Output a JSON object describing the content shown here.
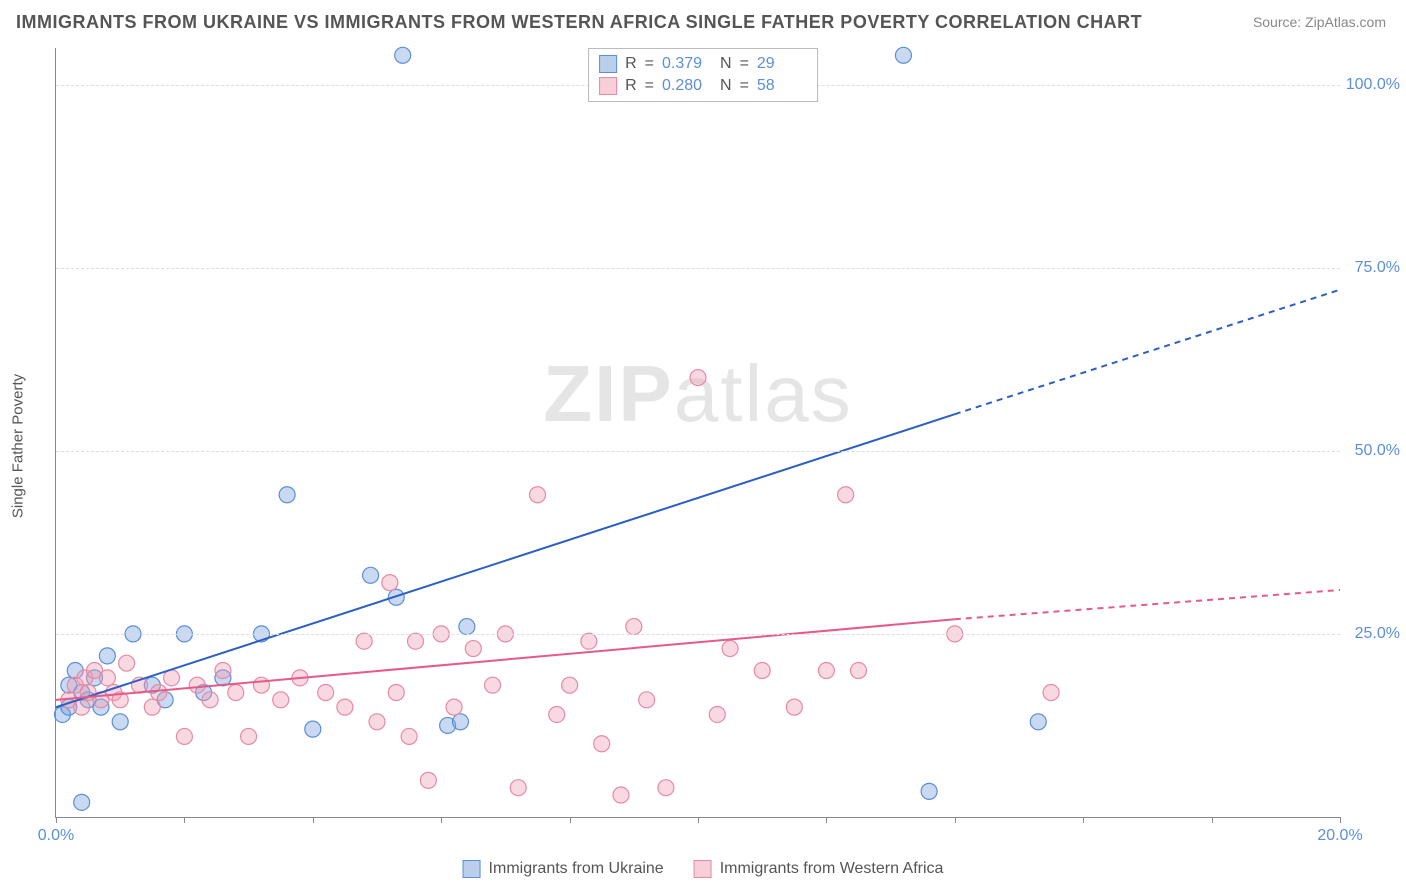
{
  "title": "IMMIGRANTS FROM UKRAINE VS IMMIGRANTS FROM WESTERN AFRICA SINGLE FATHER POVERTY CORRELATION CHART",
  "source_prefix": "Source: ",
  "source_name": "ZipAtlas.com",
  "y_axis_label": "Single Father Poverty",
  "watermark_zip": "ZIP",
  "watermark_atlas": "atlas",
  "chart": {
    "type": "scatter",
    "xlim": [
      0,
      20
    ],
    "ylim": [
      0,
      105
    ],
    "x_ticks": [
      0,
      2,
      4,
      6,
      8,
      10,
      12,
      14,
      16,
      18,
      20
    ],
    "x_tick_labels": {
      "0": "0.0%",
      "20": "20.0%"
    },
    "y_ticks": [
      25,
      50,
      75,
      100
    ],
    "y_tick_labels": [
      "25.0%",
      "50.0%",
      "75.0%",
      "100.0%"
    ],
    "grid_color": "#dddddd",
    "background_color": "#ffffff",
    "axis_color": "#888888",
    "tick_label_color": "#5b8fd6",
    "marker_radius": 8,
    "marker_opacity": 0.5,
    "line_width": 2
  },
  "series": [
    {
      "id": "ukraine",
      "label": "Immigrants from Ukraine",
      "color_fill": "rgba(120,160,220,0.4)",
      "color_stroke": "#5b8fd6",
      "trend_color": "#2c5fc4",
      "trend": {
        "x1": 0,
        "y1": 15,
        "x2_solid": 14,
        "y2_solid": 55,
        "x2": 20,
        "y2": 72
      },
      "R": "0.379",
      "N": "29",
      "points": [
        [
          0.1,
          14
        ],
        [
          0.2,
          18
        ],
        [
          0.2,
          15
        ],
        [
          0.3,
          20
        ],
        [
          0.4,
          2
        ],
        [
          0.4,
          17
        ],
        [
          0.5,
          16
        ],
        [
          0.6,
          19
        ],
        [
          0.7,
          15
        ],
        [
          0.8,
          22
        ],
        [
          1.0,
          13
        ],
        [
          1.2,
          25
        ],
        [
          1.5,
          18
        ],
        [
          1.7,
          16
        ],
        [
          2.0,
          25
        ],
        [
          2.3,
          17
        ],
        [
          2.6,
          19
        ],
        [
          3.2,
          25
        ],
        [
          3.6,
          44
        ],
        [
          4.0,
          12
        ],
        [
          4.9,
          33
        ],
        [
          5.3,
          30
        ],
        [
          5.4,
          104
        ],
        [
          6.1,
          12.5
        ],
        [
          6.3,
          13
        ],
        [
          6.4,
          26
        ],
        [
          13.2,
          104
        ],
        [
          13.6,
          3.5
        ],
        [
          15.3,
          13
        ]
      ]
    },
    {
      "id": "western_africa",
      "label": "Immigrants from Western Africa",
      "color_fill": "rgba(240,160,180,0.4)",
      "color_stroke": "#e68aa5",
      "trend_color": "#e55a87",
      "trend": {
        "x1": 0,
        "y1": 16,
        "x2_solid": 14,
        "y2_solid": 27,
        "x2": 20,
        "y2": 31
      },
      "R": "0.280",
      "N": "58",
      "points": [
        [
          0.2,
          16
        ],
        [
          0.3,
          18
        ],
        [
          0.4,
          15
        ],
        [
          0.45,
          19
        ],
        [
          0.5,
          17
        ],
        [
          0.6,
          20
        ],
        [
          0.7,
          16
        ],
        [
          0.8,
          19
        ],
        [
          0.9,
          17
        ],
        [
          1.0,
          16
        ],
        [
          1.1,
          21
        ],
        [
          1.3,
          18
        ],
        [
          1.5,
          15
        ],
        [
          1.6,
          17
        ],
        [
          1.8,
          19
        ],
        [
          2.0,
          11
        ],
        [
          2.2,
          18
        ],
        [
          2.4,
          16
        ],
        [
          2.6,
          20
        ],
        [
          2.8,
          17
        ],
        [
          3.0,
          11
        ],
        [
          3.2,
          18
        ],
        [
          3.5,
          16
        ],
        [
          3.8,
          19
        ],
        [
          4.2,
          17
        ],
        [
          4.5,
          15
        ],
        [
          4.8,
          24
        ],
        [
          5.0,
          13
        ],
        [
          5.2,
          32
        ],
        [
          5.3,
          17
        ],
        [
          5.5,
          11
        ],
        [
          5.6,
          24
        ],
        [
          5.8,
          5
        ],
        [
          6.0,
          25
        ],
        [
          6.2,
          15
        ],
        [
          6.5,
          23
        ],
        [
          6.8,
          18
        ],
        [
          7.0,
          25
        ],
        [
          7.2,
          4
        ],
        [
          7.5,
          44
        ],
        [
          7.8,
          14
        ],
        [
          8.0,
          18
        ],
        [
          8.3,
          24
        ],
        [
          8.5,
          10
        ],
        [
          8.8,
          3
        ],
        [
          9.0,
          26
        ],
        [
          9.2,
          16
        ],
        [
          9.5,
          4
        ],
        [
          10.0,
          60
        ],
        [
          10.3,
          14
        ],
        [
          10.5,
          23
        ],
        [
          11.0,
          20
        ],
        [
          11.5,
          15
        ],
        [
          12.0,
          20
        ],
        [
          12.3,
          44
        ],
        [
          12.5,
          20
        ],
        [
          14.0,
          25
        ],
        [
          15.5,
          17
        ]
      ]
    }
  ],
  "stats_legend": {
    "R_prefix": "R",
    "equals": " = ",
    "N_prefix": "N"
  }
}
